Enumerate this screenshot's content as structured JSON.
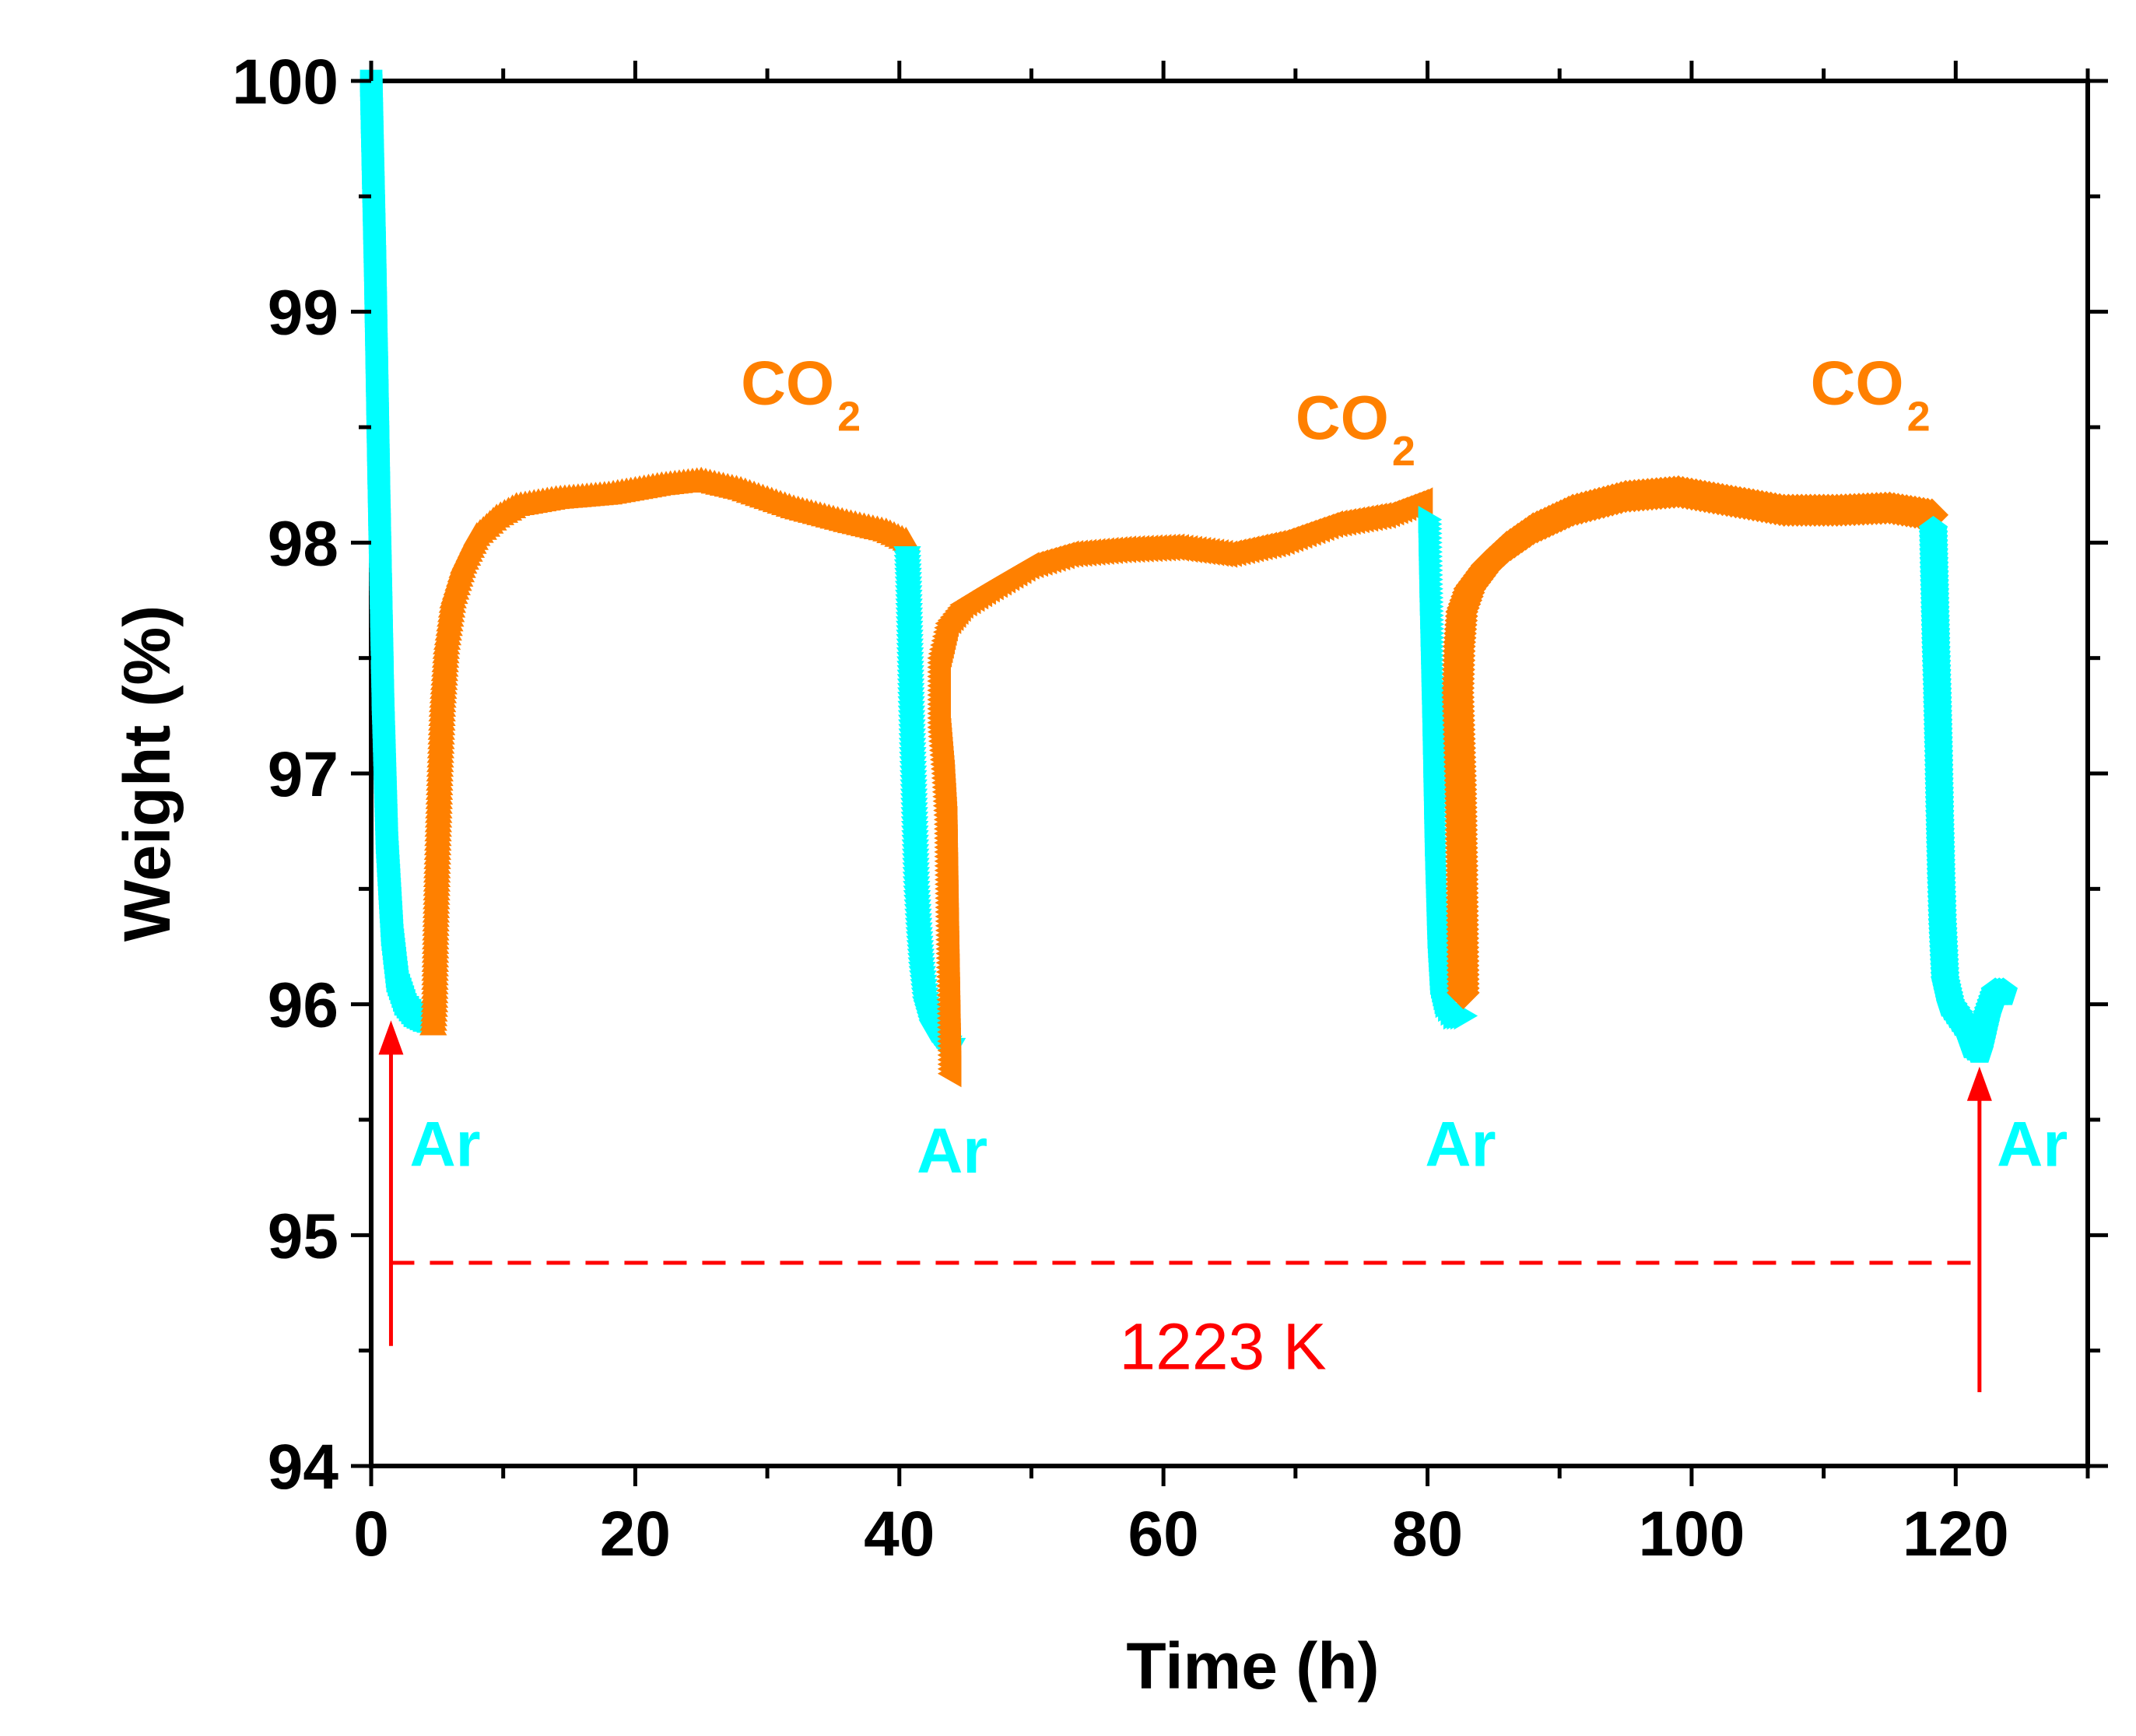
{
  "chart_data": {
    "type": "scatter",
    "title": "",
    "xlabel": "Time (h)",
    "ylabel": "Weight (%)",
    "xlim": [
      0,
      130
    ],
    "ylim": [
      94,
      100
    ],
    "x_ticks": [
      0,
      20,
      40,
      60,
      80,
      100,
      120
    ],
    "y_ticks": [
      94,
      95,
      96,
      97,
      98,
      99,
      100
    ],
    "x_tick_labels": [
      "0",
      "20",
      "40",
      "60",
      "80",
      "100",
      "120"
    ],
    "y_tick_labels": [
      "94",
      "95",
      "96",
      "97",
      "98",
      "99",
      "100"
    ],
    "colors": {
      "ar": "#00FFFF",
      "co2": "#FF8000",
      "annotation": "#FF0000",
      "axis": "#000000"
    },
    "series": [
      {
        "name": "Ar 1",
        "gas": "Ar",
        "marker": "square",
        "points": [
          [
            0,
            100
          ],
          [
            0.3,
            99.2
          ],
          [
            0.6,
            98.2
          ],
          [
            0.9,
            97.3
          ],
          [
            1.2,
            96.7
          ],
          [
            1.6,
            96.3
          ],
          [
            2.0,
            96.1
          ],
          [
            2.6,
            96.0
          ],
          [
            3.3,
            95.95
          ],
          [
            4.0,
            95.93
          ],
          [
            4.6,
            95.92
          ]
        ]
      },
      {
        "name": "CO2 1",
        "gas": "CO2",
        "marker": "triangle-up",
        "points": [
          [
            4.7,
            95.9
          ],
          [
            4.8,
            96.0
          ],
          [
            4.9,
            96.35
          ],
          [
            5.0,
            96.6
          ],
          [
            5.1,
            96.8
          ],
          [
            5.2,
            97.0
          ],
          [
            5.4,
            97.3
          ],
          [
            5.7,
            97.55
          ],
          [
            6.2,
            97.75
          ],
          [
            7.0,
            97.9
          ],
          [
            8.0,
            98.02
          ],
          [
            9.5,
            98.1
          ],
          [
            11,
            98.15
          ],
          [
            14,
            98.18
          ],
          [
            18,
            98.2
          ],
          [
            22,
            98.24
          ],
          [
            25,
            98.26
          ],
          [
            28,
            98.22
          ],
          [
            32,
            98.14
          ],
          [
            36,
            98.08
          ],
          [
            39,
            98.04
          ],
          [
            40.5,
            98.0
          ]
        ]
      },
      {
        "name": "Ar 2",
        "gas": "Ar",
        "marker": "triangle-down",
        "points": [
          [
            40.6,
            97.95
          ],
          [
            40.7,
            97.8
          ],
          [
            40.8,
            97.55
          ],
          [
            40.9,
            97.3
          ],
          [
            41.0,
            97.1
          ],
          [
            41.1,
            96.9
          ],
          [
            41.2,
            96.7
          ],
          [
            41.3,
            96.5
          ],
          [
            41.5,
            96.3
          ],
          [
            41.7,
            96.15
          ],
          [
            42.0,
            96.0
          ],
          [
            42.5,
            95.9
          ],
          [
            43.2,
            95.85
          ],
          [
            44.0,
            95.82
          ]
        ]
      },
      {
        "name": "CO2 2",
        "gas": "CO2",
        "marker": "triangle-left",
        "points": [
          [
            44.1,
            95.7
          ],
          [
            43.9,
            96.4
          ],
          [
            43.8,
            96.8
          ],
          [
            43.6,
            97.0
          ],
          [
            43.3,
            97.2
          ],
          [
            43.3,
            97.5
          ],
          [
            43.9,
            97.65
          ],
          [
            45,
            97.73
          ],
          [
            47,
            97.8
          ],
          [
            50,
            97.9
          ],
          [
            53,
            97.95
          ],
          [
            57,
            97.97
          ],
          [
            61,
            97.98
          ],
          [
            65,
            97.95
          ],
          [
            69,
            98.0
          ],
          [
            73,
            98.08
          ],
          [
            77,
            98.12
          ],
          [
            79.8,
            98.18
          ]
        ]
      },
      {
        "name": "Ar 3",
        "gas": "Ar",
        "marker": "triangle-right",
        "points": [
          [
            79.9,
            98.1
          ],
          [
            80.0,
            97.8
          ],
          [
            80.1,
            97.55
          ],
          [
            80.2,
            97.3
          ],
          [
            80.3,
            97.0
          ],
          [
            80.4,
            96.7
          ],
          [
            80.5,
            96.5
          ],
          [
            80.6,
            96.3
          ],
          [
            80.8,
            96.1
          ],
          [
            81.2,
            96.0
          ],
          [
            81.8,
            95.95
          ],
          [
            82.6,
            95.95
          ]
        ]
      },
      {
        "name": "CO2 3",
        "gas": "CO2",
        "marker": "diamond",
        "points": [
          [
            82.7,
            96.05
          ],
          [
            82.6,
            96.6
          ],
          [
            82.5,
            96.95
          ],
          [
            82.4,
            97.15
          ],
          [
            82.3,
            97.35
          ],
          [
            82.4,
            97.55
          ],
          [
            82.6,
            97.7
          ],
          [
            83.2,
            97.8
          ],
          [
            84.5,
            97.9
          ],
          [
            86,
            97.98
          ],
          [
            88,
            98.06
          ],
          [
            91,
            98.14
          ],
          [
            95,
            98.2
          ],
          [
            99,
            98.22
          ],
          [
            103,
            98.18
          ],
          [
            107,
            98.14
          ],
          [
            111,
            98.14
          ],
          [
            115,
            98.15
          ],
          [
            118.2,
            98.12
          ]
        ]
      },
      {
        "name": "Ar 4",
        "gas": "Ar",
        "marker": "pentagon",
        "points": [
          [
            118.3,
            98.05
          ],
          [
            118.4,
            97.8
          ],
          [
            118.5,
            97.55
          ],
          [
            118.6,
            97.35
          ],
          [
            118.7,
            97.1
          ],
          [
            118.8,
            96.8
          ],
          [
            118.9,
            96.55
          ],
          [
            119.0,
            96.35
          ],
          [
            119.2,
            96.1
          ],
          [
            119.6,
            96.0
          ],
          [
            120.2,
            95.95
          ],
          [
            120.8,
            95.9
          ],
          [
            121.3,
            95.82
          ],
          [
            121.8,
            95.8
          ],
          [
            122.4,
            95.95
          ],
          [
            123.0,
            96.05
          ],
          [
            123.6,
            96.05
          ]
        ]
      }
    ],
    "annotations": {
      "co2_labels": [
        {
          "x": 28,
          "y": 98.6,
          "main": "CO",
          "sub": "2"
        },
        {
          "x": 70,
          "y": 98.45,
          "main": "CO",
          "sub": "2"
        },
        {
          "x": 109,
          "y": 98.6,
          "main": "CO",
          "sub": "2"
        }
      ],
      "ar_labels": [
        {
          "x": 5.6,
          "y": 95.3,
          "text": "Ar"
        },
        {
          "x": 44,
          "y": 95.27,
          "text": "Ar"
        },
        {
          "x": 82.5,
          "y": 95.3,
          "text": "Ar"
        },
        {
          "x": 125.8,
          "y": 95.3,
          "text": "Ar"
        }
      ],
      "temperature": {
        "text": "1223 K",
        "y": 94.88,
        "x_start": 1.5,
        "x_end": 121.6,
        "label_x": 64.5,
        "label_y": 94.42
      },
      "arrows": [
        {
          "x": 1.5,
          "y_from": 94.52,
          "y_to": 95.93
        },
        {
          "x": 121.8,
          "y_from": 94.32,
          "y_to": 95.73
        }
      ]
    }
  }
}
